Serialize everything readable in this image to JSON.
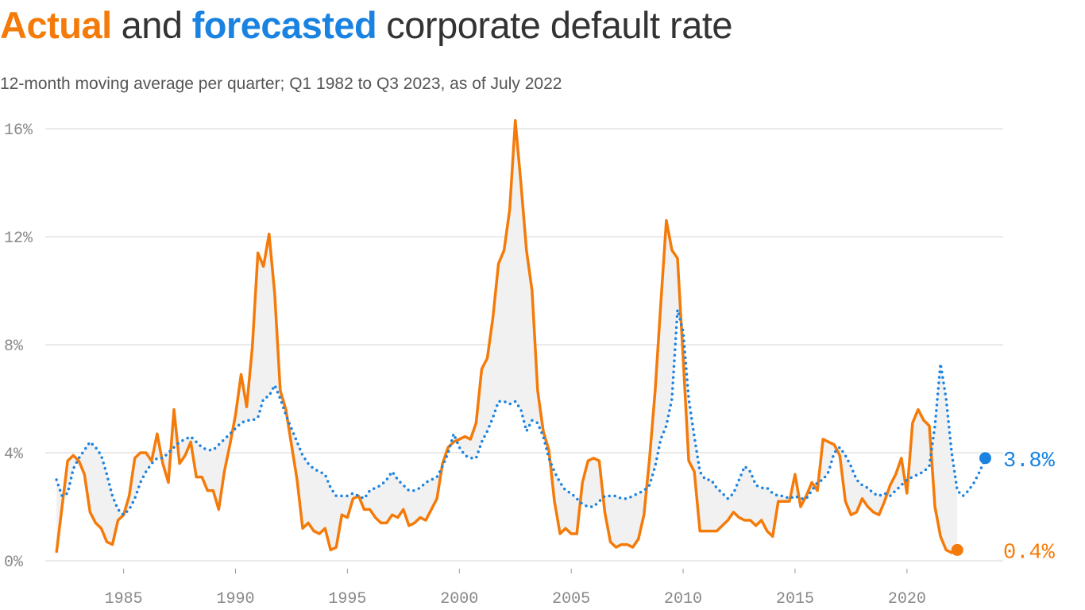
{
  "chart_data": {
    "type": "line",
    "title": [
      "Actual",
      "and",
      "forecasted",
      "corporate default rate"
    ],
    "title_colors": [
      "#f47b0a",
      "#333333",
      "#1a83e2",
      "#333333"
    ],
    "subtitle": "12-month moving average per quarter; Q1 1982 to Q3 2023, as of July 2022",
    "x": [
      1982,
      1982.25,
      1982.5,
      1982.75,
      1983,
      1983.25,
      1983.5,
      1983.75,
      1984,
      1984.25,
      1984.5,
      1984.75,
      1985,
      1985.25,
      1985.5,
      1985.75,
      1986,
      1986.25,
      1986.5,
      1986.75,
      1987,
      1987.25,
      1987.5,
      1987.75,
      1988,
      1988.25,
      1988.5,
      1988.75,
      1989,
      1989.25,
      1989.5,
      1989.75,
      1990,
      1990.25,
      1990.5,
      1990.75,
      1991,
      1991.25,
      1991.5,
      1991.75,
      1992,
      1992.25,
      1992.5,
      1992.75,
      1993,
      1993.25,
      1993.5,
      1993.75,
      1994,
      1994.25,
      1994.5,
      1994.75,
      1995,
      1995.25,
      1995.5,
      1995.75,
      1996,
      1996.25,
      1996.5,
      1996.75,
      1997,
      1997.25,
      1997.5,
      1997.75,
      1998,
      1998.25,
      1998.5,
      1998.75,
      1999,
      1999.25,
      1999.5,
      1999.75,
      2000,
      2000.25,
      2000.5,
      2000.75,
      2001,
      2001.25,
      2001.5,
      2001.75,
      2002,
      2002.25,
      2002.5,
      2002.75,
      2003,
      2003.25,
      2003.5,
      2003.75,
      2004,
      2004.25,
      2004.5,
      2004.75,
      2005,
      2005.25,
      2005.5,
      2005.75,
      2006,
      2006.25,
      2006.5,
      2006.75,
      2007,
      2007.25,
      2007.5,
      2007.75,
      2008,
      2008.25,
      2008.5,
      2008.75,
      2009,
      2009.25,
      2009.5,
      2009.75,
      2010,
      2010.25,
      2010.5,
      2010.75,
      2011,
      2011.25,
      2011.5,
      2011.75,
      2012,
      2012.25,
      2012.5,
      2012.75,
      2013,
      2013.25,
      2013.5,
      2013.75,
      2014,
      2014.25,
      2014.5,
      2014.75,
      2015,
      2015.25,
      2015.5,
      2015.75,
      2016,
      2016.25,
      2016.5,
      2016.75,
      2017,
      2017.25,
      2017.5,
      2017.75,
      2018,
      2018.25,
      2018.5,
      2018.75,
      2019,
      2019.25,
      2019.5,
      2019.75,
      2020,
      2020.25,
      2020.5,
      2020.75,
      2021,
      2021.25,
      2021.5,
      2021.75,
      2022,
      2022.25,
      2022.5,
      2022.75,
      2023,
      2023.25,
      2023.5
    ],
    "series": [
      {
        "name": "Actual",
        "color": "#f47b0a",
        "style": "solid",
        "values": [
          0.3,
          2.0,
          3.7,
          3.9,
          3.7,
          3.2,
          1.8,
          1.4,
          1.2,
          0.7,
          0.6,
          1.5,
          1.7,
          2.4,
          3.8,
          4.0,
          4.0,
          3.7,
          4.7,
          3.6,
          2.9,
          5.6,
          3.6,
          3.9,
          4.4,
          3.1,
          3.1,
          2.6,
          2.6,
          1.9,
          3.3,
          4.3,
          5.4,
          6.9,
          5.7,
          7.9,
          11.4,
          10.9,
          12.1,
          9.9,
          6.3,
          5.6,
          4.3,
          3.0,
          1.2,
          1.4,
          1.1,
          1.0,
          1.2,
          0.4,
          0.5,
          1.7,
          1.6,
          2.3,
          2.4,
          1.9,
          1.9,
          1.6,
          1.4,
          1.4,
          1.7,
          1.6,
          1.9,
          1.3,
          1.4,
          1.6,
          1.5,
          1.9,
          2.3,
          3.6,
          4.2,
          4.4,
          4.5,
          4.6,
          4.5,
          5.1,
          7.1,
          7.5,
          9.0,
          11.0,
          11.5,
          13.0,
          16.3,
          14.0,
          11.5,
          10.0,
          6.3,
          4.8,
          4.1,
          2.2,
          1.0,
          1.2,
          1.0,
          1.0,
          2.9,
          3.7,
          3.8,
          3.7,
          1.8,
          0.7,
          0.5,
          0.6,
          0.6,
          0.5,
          0.8,
          1.7,
          3.8,
          6.3,
          9.5,
          12.6,
          11.5,
          11.2,
          7.5,
          3.7,
          3.3,
          1.1,
          1.1,
          1.1,
          1.1,
          1.3,
          1.5,
          1.8,
          1.6,
          1.5,
          1.5,
          1.3,
          1.5,
          1.1,
          0.9,
          2.2,
          2.2,
          2.2,
          3.2,
          2.0,
          2.4,
          2.9,
          2.6,
          4.5,
          4.4,
          4.3,
          3.9,
          2.2,
          1.7,
          1.8,
          2.3,
          2.0,
          1.8,
          1.7,
          2.2,
          2.8,
          3.2,
          3.8,
          2.5,
          5.1,
          5.6,
          5.2,
          5.0,
          2.0,
          0.9,
          0.4,
          0.3,
          0.4,
          null,
          null,
          null,
          null,
          null
        ],
        "value_labels": {
          "161": "0.4%"
        }
      },
      {
        "name": "Forecasted",
        "color": "#1a83e2",
        "style": "dotted",
        "values": [
          3.0,
          2.4,
          2.5,
          3.4,
          3.8,
          4.1,
          4.4,
          4.2,
          3.9,
          3.2,
          2.4,
          1.9,
          1.7,
          1.9,
          2.3,
          2.9,
          3.3,
          3.6,
          3.8,
          3.8,
          4.0,
          4.2,
          4.4,
          4.5,
          4.6,
          4.4,
          4.2,
          4.1,
          4.1,
          4.3,
          4.5,
          4.7,
          4.9,
          5.1,
          5.2,
          5.2,
          5.3,
          6.0,
          6.1,
          6.5,
          6.0,
          5.4,
          4.9,
          4.4,
          3.9,
          3.6,
          3.4,
          3.3,
          3.2,
          2.7,
          2.4,
          2.4,
          2.4,
          2.5,
          2.4,
          2.3,
          2.6,
          2.7,
          2.8,
          3.0,
          3.3,
          3.0,
          2.8,
          2.6,
          2.6,
          2.7,
          2.9,
          3.0,
          3.1,
          3.5,
          4.0,
          4.7,
          4.2,
          3.9,
          3.8,
          3.8,
          4.4,
          4.8,
          5.3,
          5.9,
          5.9,
          5.8,
          5.9,
          5.6,
          4.8,
          5.2,
          5.1,
          4.6,
          3.8,
          3.3,
          2.9,
          2.6,
          2.5,
          2.3,
          2.1,
          2.0,
          2.0,
          2.2,
          2.4,
          2.4,
          2.4,
          2.3,
          2.3,
          2.4,
          2.5,
          2.6,
          2.8,
          3.5,
          4.5,
          5.0,
          6.0,
          9.3,
          8.5,
          6.0,
          4.6,
          3.3,
          3.0,
          3.0,
          2.7,
          2.5,
          2.3,
          2.5,
          3.0,
          3.5,
          3.3,
          2.8,
          2.7,
          2.7,
          2.5,
          2.4,
          2.4,
          2.3,
          2.4,
          2.3,
          2.3,
          2.6,
          2.9,
          3.0,
          3.3,
          4.0,
          4.2,
          3.9,
          3.5,
          3.0,
          2.8,
          2.7,
          2.5,
          2.4,
          2.5,
          2.4,
          2.6,
          2.8,
          3.0,
          3.1,
          3.2,
          3.3,
          3.5,
          5.0,
          7.3,
          6.0,
          4.0,
          2.6,
          2.4,
          2.6,
          2.9,
          3.3,
          3.8
        ],
        "value_labels": {
          "166": "3.8%"
        }
      }
    ],
    "xlim": [
      1981.5,
      2024.3
    ],
    "xticks": [
      1985,
      1990,
      1995,
      2000,
      2005,
      2010,
      2015,
      2020
    ],
    "ylim": [
      0,
      16
    ],
    "yticks": [
      {
        "value": 0,
        "label": "0%"
      },
      {
        "value": 4,
        "label": "4%"
      },
      {
        "value": 8,
        "label": "8%"
      },
      {
        "value": 12,
        "label": "12%"
      },
      {
        "value": 16,
        "label": "16%"
      }
    ],
    "grid": true
  }
}
